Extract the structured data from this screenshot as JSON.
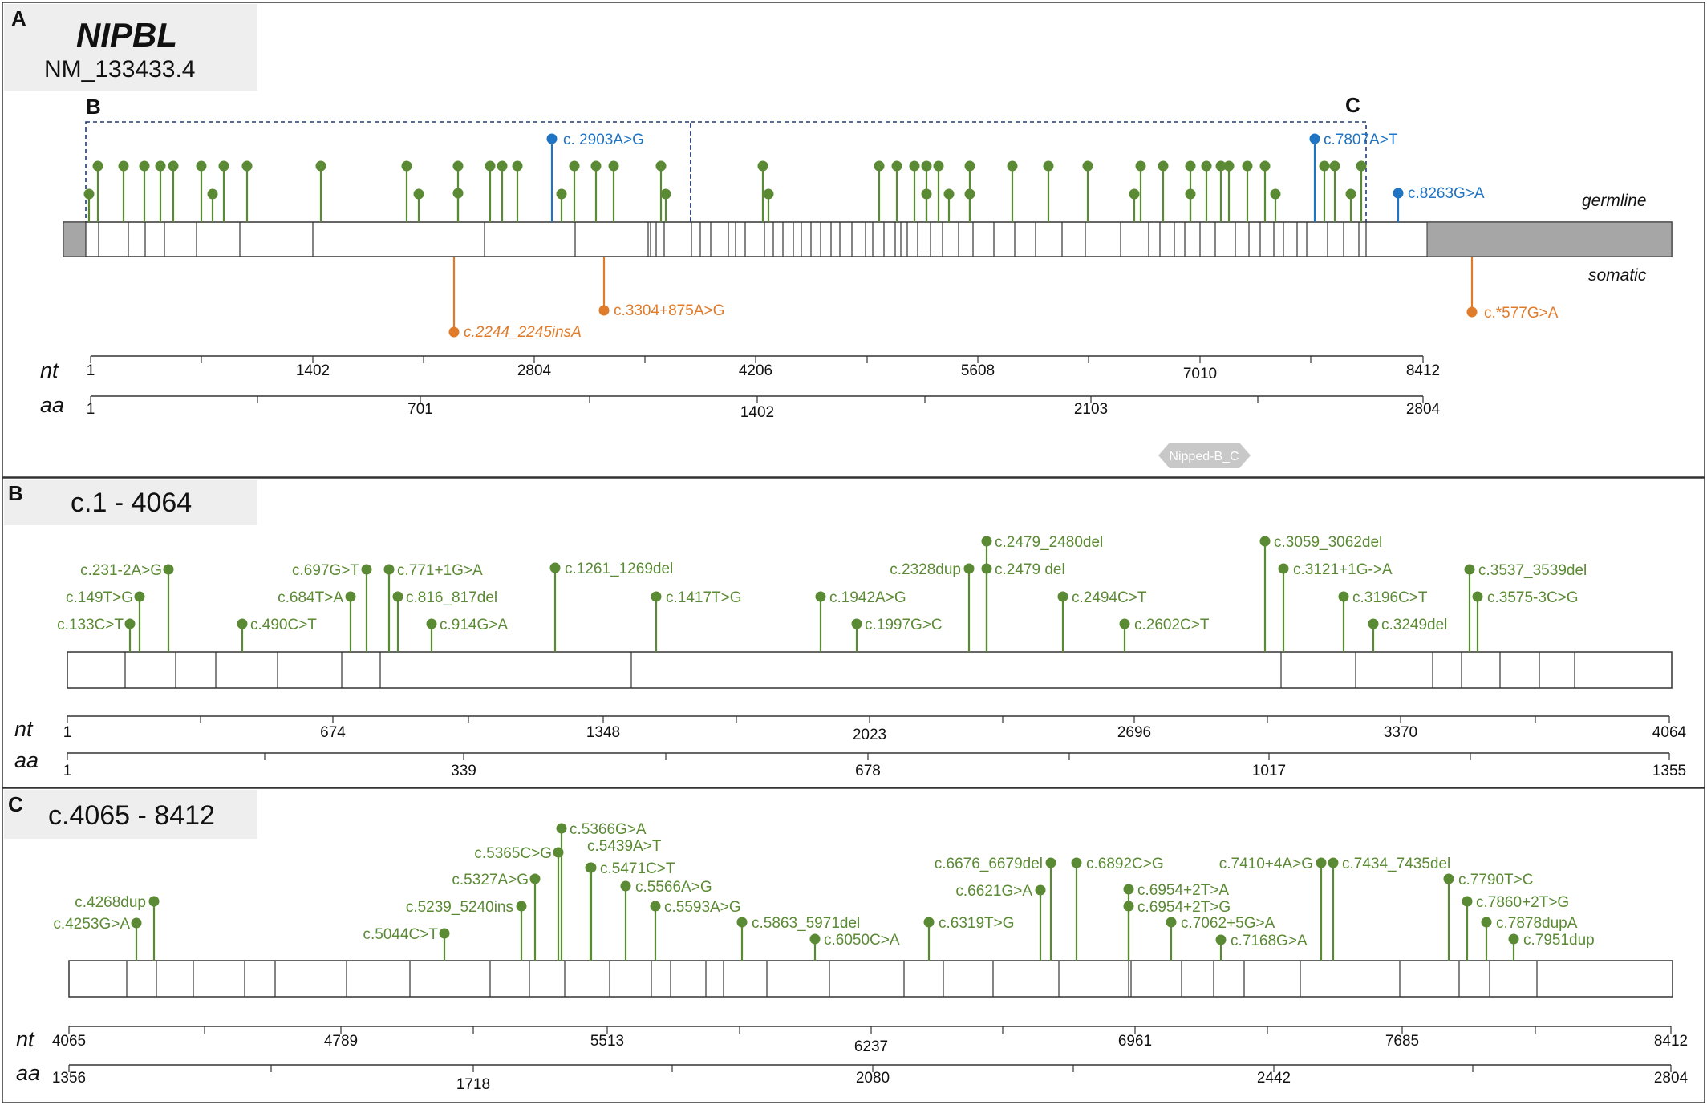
{
  "colors": {
    "germline_green": "#5b8a34",
    "germline_blue": "#1f74c4",
    "somatic_orange": "#e07b2a",
    "box_stroke": "#333333",
    "utr_gray": "#a6a6a6",
    "zoom_dash": "#1f3b73",
    "domain_gray": "#c8c8c8"
  },
  "panel_a": {
    "letter": "A",
    "gene": "NIPBL",
    "transcript": "NM_133433.4",
    "zoom_b_label": "B",
    "zoom_c_label": "C",
    "germline_label": "germline",
    "somatic_label": "somatic",
    "nt_label": "nt",
    "aa_label": "aa",
    "nt_ticks": [
      "1",
      "1402",
      "2804",
      "4206",
      "5608",
      "7010",
      "8412"
    ],
    "aa_ticks": [
      "1",
      "701",
      "1402",
      "2103",
      "2804"
    ],
    "domain_label": "Nipped-B_C",
    "labeled_variants": [
      {
        "label": "c. 2903A>G",
        "track": "germline",
        "color": "blue"
      },
      {
        "label": "c.7807A>T",
        "track": "germline",
        "color": "blue"
      },
      {
        "label": "c.8263G>A",
        "track": "germline",
        "color": "blue"
      },
      {
        "label": "c.2244_2245insA",
        "track": "somatic",
        "color": "orange",
        "italic": true
      },
      {
        "label": "c.3304+875A>G",
        "track": "somatic",
        "color": "orange"
      },
      {
        "label": "c.*577G>A",
        "track": "somatic",
        "color": "orange"
      }
    ]
  },
  "panel_b": {
    "letter": "B",
    "title": "c.1 - 4064",
    "nt_label": "nt",
    "aa_label": "aa",
    "nt_ticks": [
      "1",
      "674",
      "1348",
      "2023",
      "2696",
      "3370",
      "4064"
    ],
    "aa_ticks": [
      "1",
      "339",
      "678",
      "1017",
      "1355"
    ],
    "variants": [
      "c.133C>T",
      "c.149T>G",
      "c.231-2A>G",
      "c.490C>T",
      "c.684T>A",
      "c.697G>T",
      "c.771+1G>A",
      "c.816_817del",
      "c.914G>A",
      "c.1261_1269del",
      "c.1417T>G",
      "c.1942A>G",
      "c.1997G>C",
      "c.2328dup",
      "c.2479_2480del",
      "c.2479 del",
      "c.2494C>T",
      "c.2602C>T",
      "c.3059_3062del",
      "c.3121+1G->A",
      "c.3196C>T",
      "c.3249del",
      "c.3537_3539del",
      "c.3575-3C>G"
    ]
  },
  "panel_c": {
    "letter": "C",
    "title": "c.4065 - 8412",
    "nt_label": "nt",
    "aa_label": "aa",
    "nt_ticks": [
      "4065",
      "4789",
      "5513",
      "6237",
      "6961",
      "7685",
      "8412"
    ],
    "aa_ticks": [
      "1356",
      "1718",
      "2080",
      "2442",
      "2804"
    ],
    "variants": [
      "c.4253G>A",
      "c.4268dup",
      "c.5044C>T",
      "c.5239_5240ins",
      "c.5327A>G",
      "c.5365C>G",
      "c.5366G>A",
      "c.5439A>T",
      "c.5471C>T",
      "c.5566A>G",
      "c.5593A>G",
      "c.5863_5971del",
      "c.6050C>A",
      "c.6319T>G",
      "c.6621G>A",
      "c.6676_6679del",
      "c.6892C>G",
      "c.6954+2T>A",
      "c.6954+2T>G",
      "c.7062+5G>A",
      "c.7168G>A",
      "c.7410+4A>G",
      "c.7434_7435del",
      "c.7790T>C",
      "c.7860+2T>G",
      "c.7878dupA",
      "c.7951dup"
    ]
  }
}
